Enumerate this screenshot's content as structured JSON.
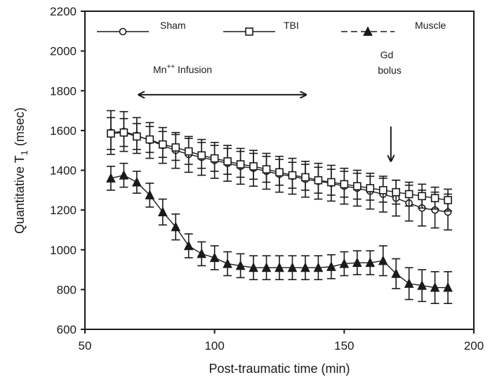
{
  "chart_data": {
    "type": "line",
    "title": "",
    "xlabel": "Post-traumatic time (min)",
    "ylabel_main": "Quantitative T",
    "ylabel_sub": "1",
    "ylabel_unit": "(msec)",
    "xlim": [
      50,
      200
    ],
    "ylim": [
      600,
      2200
    ],
    "xticks": [
      50,
      100,
      150,
      200
    ],
    "yticks": [
      600,
      800,
      1000,
      1200,
      1400,
      1600,
      1800,
      2000,
      2200
    ],
    "grid": false,
    "legend_position": "top",
    "x": [
      60,
      65,
      70,
      75,
      80,
      85,
      90,
      95,
      100,
      105,
      110,
      115,
      120,
      125,
      130,
      135,
      140,
      145,
      150,
      155,
      160,
      165,
      170,
      175,
      180,
      185,
      190
    ],
    "series": [
      {
        "name": "Sham",
        "marker": "open-circle",
        "line_style": "solid",
        "values": [
          1590,
          1595,
          1575,
          1550,
          1525,
          1500,
          1480,
          1465,
          1450,
          1435,
          1420,
          1410,
          1395,
          1380,
          1370,
          1355,
          1345,
          1335,
          1320,
          1310,
          1295,
          1280,
          1260,
          1235,
          1210,
          1200,
          1190
        ],
        "error": [
          110,
          100,
          90,
          90,
          90,
          90,
          90,
          90,
          90,
          90,
          90,
          90,
          90,
          90,
          90,
          90,
          90,
          90,
          90,
          90,
          90,
          90,
          90,
          90,
          90,
          90,
          90
        ]
      },
      {
        "name": "TBI",
        "marker": "open-square",
        "line_style": "solid",
        "values": [
          1585,
          1590,
          1570,
          1555,
          1530,
          1515,
          1495,
          1475,
          1460,
          1445,
          1430,
          1420,
          1405,
          1390,
          1375,
          1365,
          1350,
          1340,
          1330,
          1320,
          1310,
          1300,
          1290,
          1280,
          1270,
          1260,
          1250
        ],
        "error": [
          80,
          70,
          65,
          65,
          65,
          65,
          65,
          65,
          65,
          65,
          65,
          65,
          65,
          65,
          65,
          65,
          65,
          65,
          65,
          65,
          60,
          60,
          60,
          60,
          60,
          55,
          55
        ]
      },
      {
        "name": "Muscle",
        "marker": "filled-triangle",
        "line_style": "dashed",
        "values": [
          1360,
          1375,
          1340,
          1275,
          1190,
          1115,
          1020,
          980,
          960,
          930,
          920,
          910,
          910,
          910,
          910,
          910,
          910,
          915,
          930,
          935,
          935,
          945,
          880,
          830,
          820,
          810,
          810
        ],
        "error": [
          60,
          60,
          55,
          60,
          65,
          65,
          60,
          60,
          60,
          60,
          60,
          60,
          60,
          60,
          60,
          60,
          60,
          60,
          60,
          60,
          60,
          75,
          75,
          80,
          80,
          80,
          80
        ]
      }
    ],
    "annotations": {
      "infusion": {
        "label_main": "Mn",
        "label_sup": "++",
        "label_rest": " Infusion",
        "x_start": 71,
        "x_end": 135,
        "y": 1780
      },
      "bolus": {
        "label_line1": "Gd",
        "label_line2": "bolus",
        "x": 168,
        "y_start": 1620,
        "y_end": 1450
      }
    }
  }
}
